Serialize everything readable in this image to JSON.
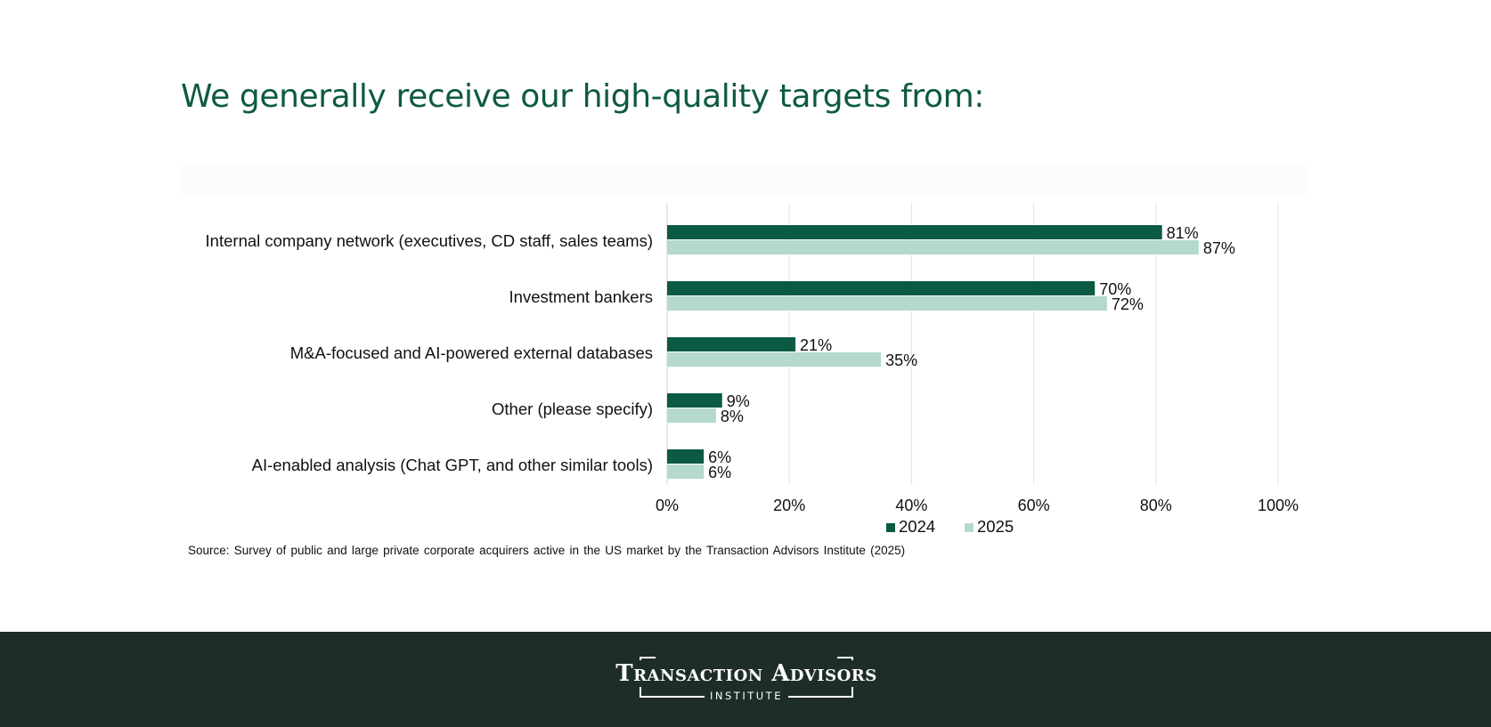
{
  "page": {
    "headline": "We generally receive our high-quality targets from:",
    "source": "Source: Survey of public and large private corporate acquirers active in the US market by the Transaction Advisors Institute (2025)"
  },
  "footer": {
    "logo_title": "Transaction Advisors",
    "logo_subtitle": "INSTITUTE",
    "background": "#1e2e26"
  },
  "colors": {
    "series_2024": "#0b5a44",
    "series_2025": "#b5d8cf",
    "headline": "#0e5a43",
    "gridline": "#e3e3e3"
  },
  "chart_data": {
    "type": "bar",
    "orientation": "horizontal",
    "categories": [
      "Internal company network (executives, CD staff, sales teams)",
      "Investment bankers",
      "M&A-focused and AI-powered external databases",
      "Other (please specify)",
      "AI-enabled analysis (Chat GPT, and other similar tools)"
    ],
    "series": [
      {
        "name": "2024",
        "values": [
          81,
          70,
          21,
          9,
          6
        ],
        "color": "#0b5a44"
      },
      {
        "name": "2025",
        "values": [
          87,
          72,
          35,
          8,
          6
        ],
        "color": "#b5d8cf"
      }
    ],
    "value_suffix": "%",
    "xlim": [
      0,
      100
    ],
    "xticks": [
      0,
      20,
      40,
      60,
      80,
      100
    ],
    "xtick_labels": [
      "0%",
      "20%",
      "40%",
      "60%",
      "80%",
      "100%"
    ],
    "grid": "vertical",
    "legend": "bottom-center",
    "title": "",
    "xlabel": "",
    "ylabel": ""
  }
}
